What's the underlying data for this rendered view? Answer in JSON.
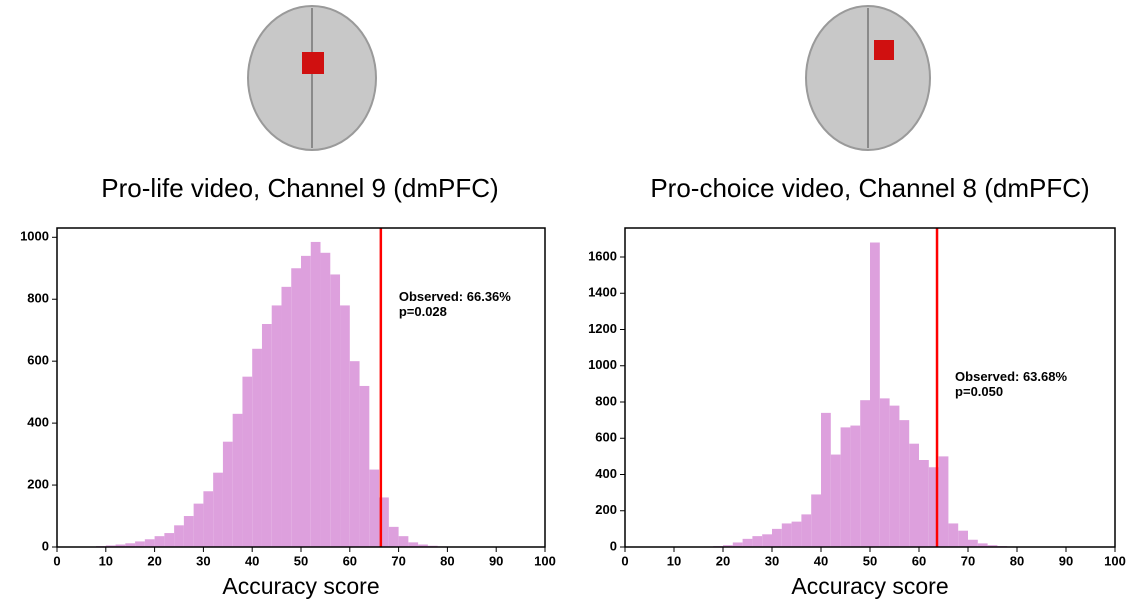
{
  "chart_data": [
    {
      "type": "histogram",
      "title": "Pro-life video, Channel 9 (dmPFC)",
      "x_label": "Accuracy score",
      "bins": [
        8,
        10,
        12,
        14,
        16,
        18,
        20,
        22,
        24,
        26,
        28,
        30,
        32,
        34,
        36,
        38,
        40,
        42,
        44,
        46,
        48,
        50,
        52,
        54,
        56,
        58,
        60,
        62,
        64,
        66,
        68,
        70,
        72,
        74,
        76,
        78,
        80,
        82
      ],
      "counts": [
        3,
        5,
        8,
        12,
        18,
        25,
        35,
        45,
        70,
        100,
        140,
        180,
        240,
        340,
        430,
        550,
        640,
        720,
        780,
        840,
        900,
        940,
        985,
        950,
        880,
        780,
        600,
        520,
        250,
        160,
        65,
        35,
        15,
        8,
        4,
        2,
        1
      ],
      "color": "#dda0dd",
      "observed": 66.36,
      "observed_color": "#ff0000",
      "annotation": [
        "Observed: 66.36%",
        "p=0.028"
      ],
      "xlim": [
        0,
        100
      ],
      "xticks": [
        0,
        10,
        20,
        30,
        40,
        50,
        60,
        70,
        80,
        90,
        100
      ],
      "ylim": [
        0,
        1030
      ],
      "yticks": [
        0,
        200,
        400,
        600,
        800,
        1000
      ]
    },
    {
      "type": "histogram",
      "title": "Pro-choice video, Channel 8 (dmPFC)",
      "x_label": "Accuracy score",
      "bins": [
        16,
        18,
        20,
        22,
        24,
        26,
        28,
        30,
        32,
        34,
        36,
        38,
        40,
        42,
        44,
        46,
        48,
        50,
        52,
        54,
        56,
        58,
        60,
        62,
        64,
        66,
        68,
        70,
        72,
        74,
        76,
        78,
        80,
        82
      ],
      "counts": [
        3,
        5,
        10,
        25,
        45,
        60,
        70,
        100,
        130,
        140,
        180,
        290,
        740,
        510,
        660,
        670,
        810,
        1680,
        820,
        780,
        700,
        570,
        480,
        440,
        500,
        130,
        90,
        40,
        20,
        10,
        5,
        3,
        1
      ],
      "color": "#dda0dd",
      "observed": 63.68,
      "observed_color": "#ff0000",
      "annotation": [
        "Observed: 63.68%",
        "p=0.050"
      ],
      "xlim": [
        0,
        100
      ],
      "xticks": [
        0,
        10,
        20,
        30,
        40,
        50,
        60,
        70,
        80,
        90,
        100
      ],
      "ylim": [
        0,
        1760
      ],
      "yticks": [
        0,
        200,
        400,
        600,
        800,
        1000,
        1200,
        1400,
        1600
      ]
    }
  ]
}
